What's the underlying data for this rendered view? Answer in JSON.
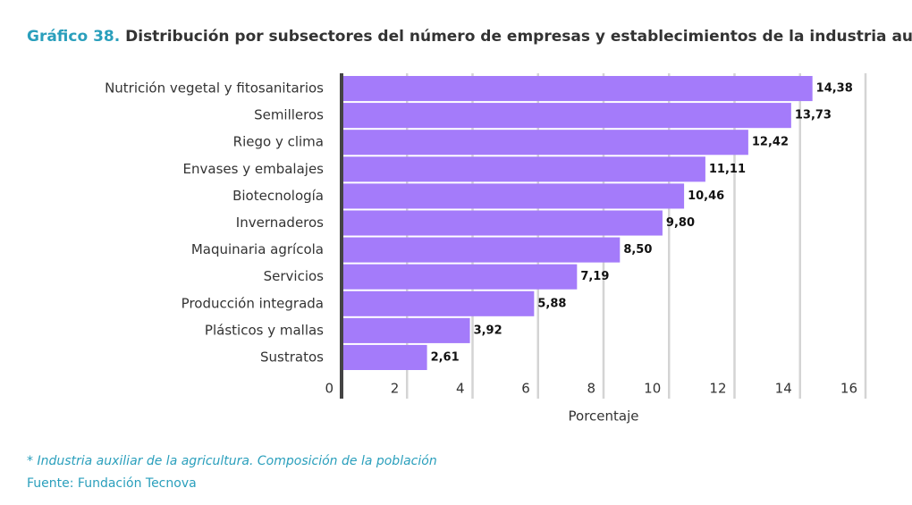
{
  "chart_data": {
    "type": "barh",
    "title_prefix": "Gráfico 38.",
    "title": "Distribución por subsectores del número de empresas y establecimientos de la industria auxiliar*",
    "categories": [
      "Nutrición vegetal y fitosanitarios",
      "Semilleros",
      "Riego y clima",
      "Envases y embalajes",
      "Biotecnología",
      "Invernaderos",
      "Maquinaria agrícola",
      "Servicios",
      "Producción integrada",
      "Plásticos y mallas",
      "Sustratos"
    ],
    "values": [
      14.38,
      13.73,
      12.42,
      11.11,
      10.46,
      9.8,
      8.5,
      7.19,
      5.88,
      3.92,
      2.61
    ],
    "value_labels": [
      "14,38",
      "13,73",
      "12,42",
      "11,11",
      "10,46",
      "9,80",
      "8,50",
      "7,19",
      "5,88",
      "3,92",
      "2,61"
    ],
    "color": "#a47bfa",
    "xlim": [
      0,
      16
    ],
    "xticks": [
      0,
      2,
      4,
      6,
      8,
      10,
      12,
      14,
      16
    ],
    "grid": true,
    "xlabel": "Porcentaje",
    "note": "* Industria auxiliar de la agricultura. Composición de la población",
    "source": "Fuente: Fundación Tecnova"
  }
}
